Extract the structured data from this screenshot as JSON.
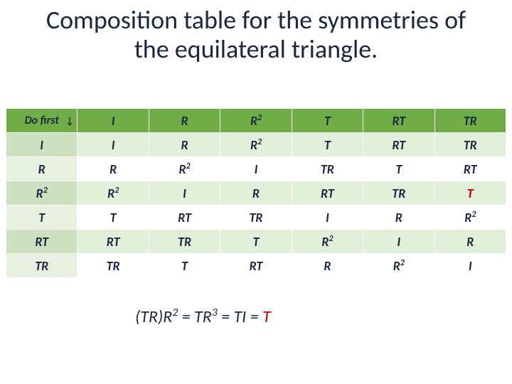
{
  "title": "Composition table for the symmetries of the equilateral triangle.",
  "corner_label": "Do first",
  "arrow_glyph": "↓",
  "table": {
    "type": "table",
    "header_bg": "#70ad47",
    "band_colors": [
      "#e2efd9",
      "#ffffff"
    ],
    "leftcol_band_colors": [
      "#cde0bf",
      "#e8f0e0"
    ],
    "text_color": "#1a2740",
    "highlight_color": "#c00000",
    "font_size": 18,
    "columns": [
      "I",
      "R",
      "R2",
      "T",
      "RT",
      "TR"
    ],
    "row_headers": [
      "I",
      "R",
      "R2",
      "T",
      "RT",
      "TR"
    ],
    "rows": [
      [
        "I",
        "R",
        "R2",
        "T",
        "RT",
        "TR"
      ],
      [
        "R",
        "R2",
        "I",
        "TR",
        "T",
        "RT"
      ],
      [
        "R2",
        "I",
        "R",
        "RT",
        "TR",
        "T"
      ],
      [
        "T",
        "RT",
        "TR",
        "I",
        "R",
        "R2"
      ],
      [
        "RT",
        "TR",
        "T",
        "R2",
        "I",
        "R"
      ],
      [
        "TR",
        "T",
        "RT",
        "R",
        "R2",
        "I"
      ]
    ],
    "highlight_cells": [
      [
        2,
        5
      ]
    ]
  },
  "formula": {
    "tokens": [
      "(TR)R",
      "2",
      " = TR",
      "3",
      " = TI = ",
      "T"
    ],
    "sup_indices": [
      1,
      3
    ],
    "red_indices": [
      5
    ]
  }
}
